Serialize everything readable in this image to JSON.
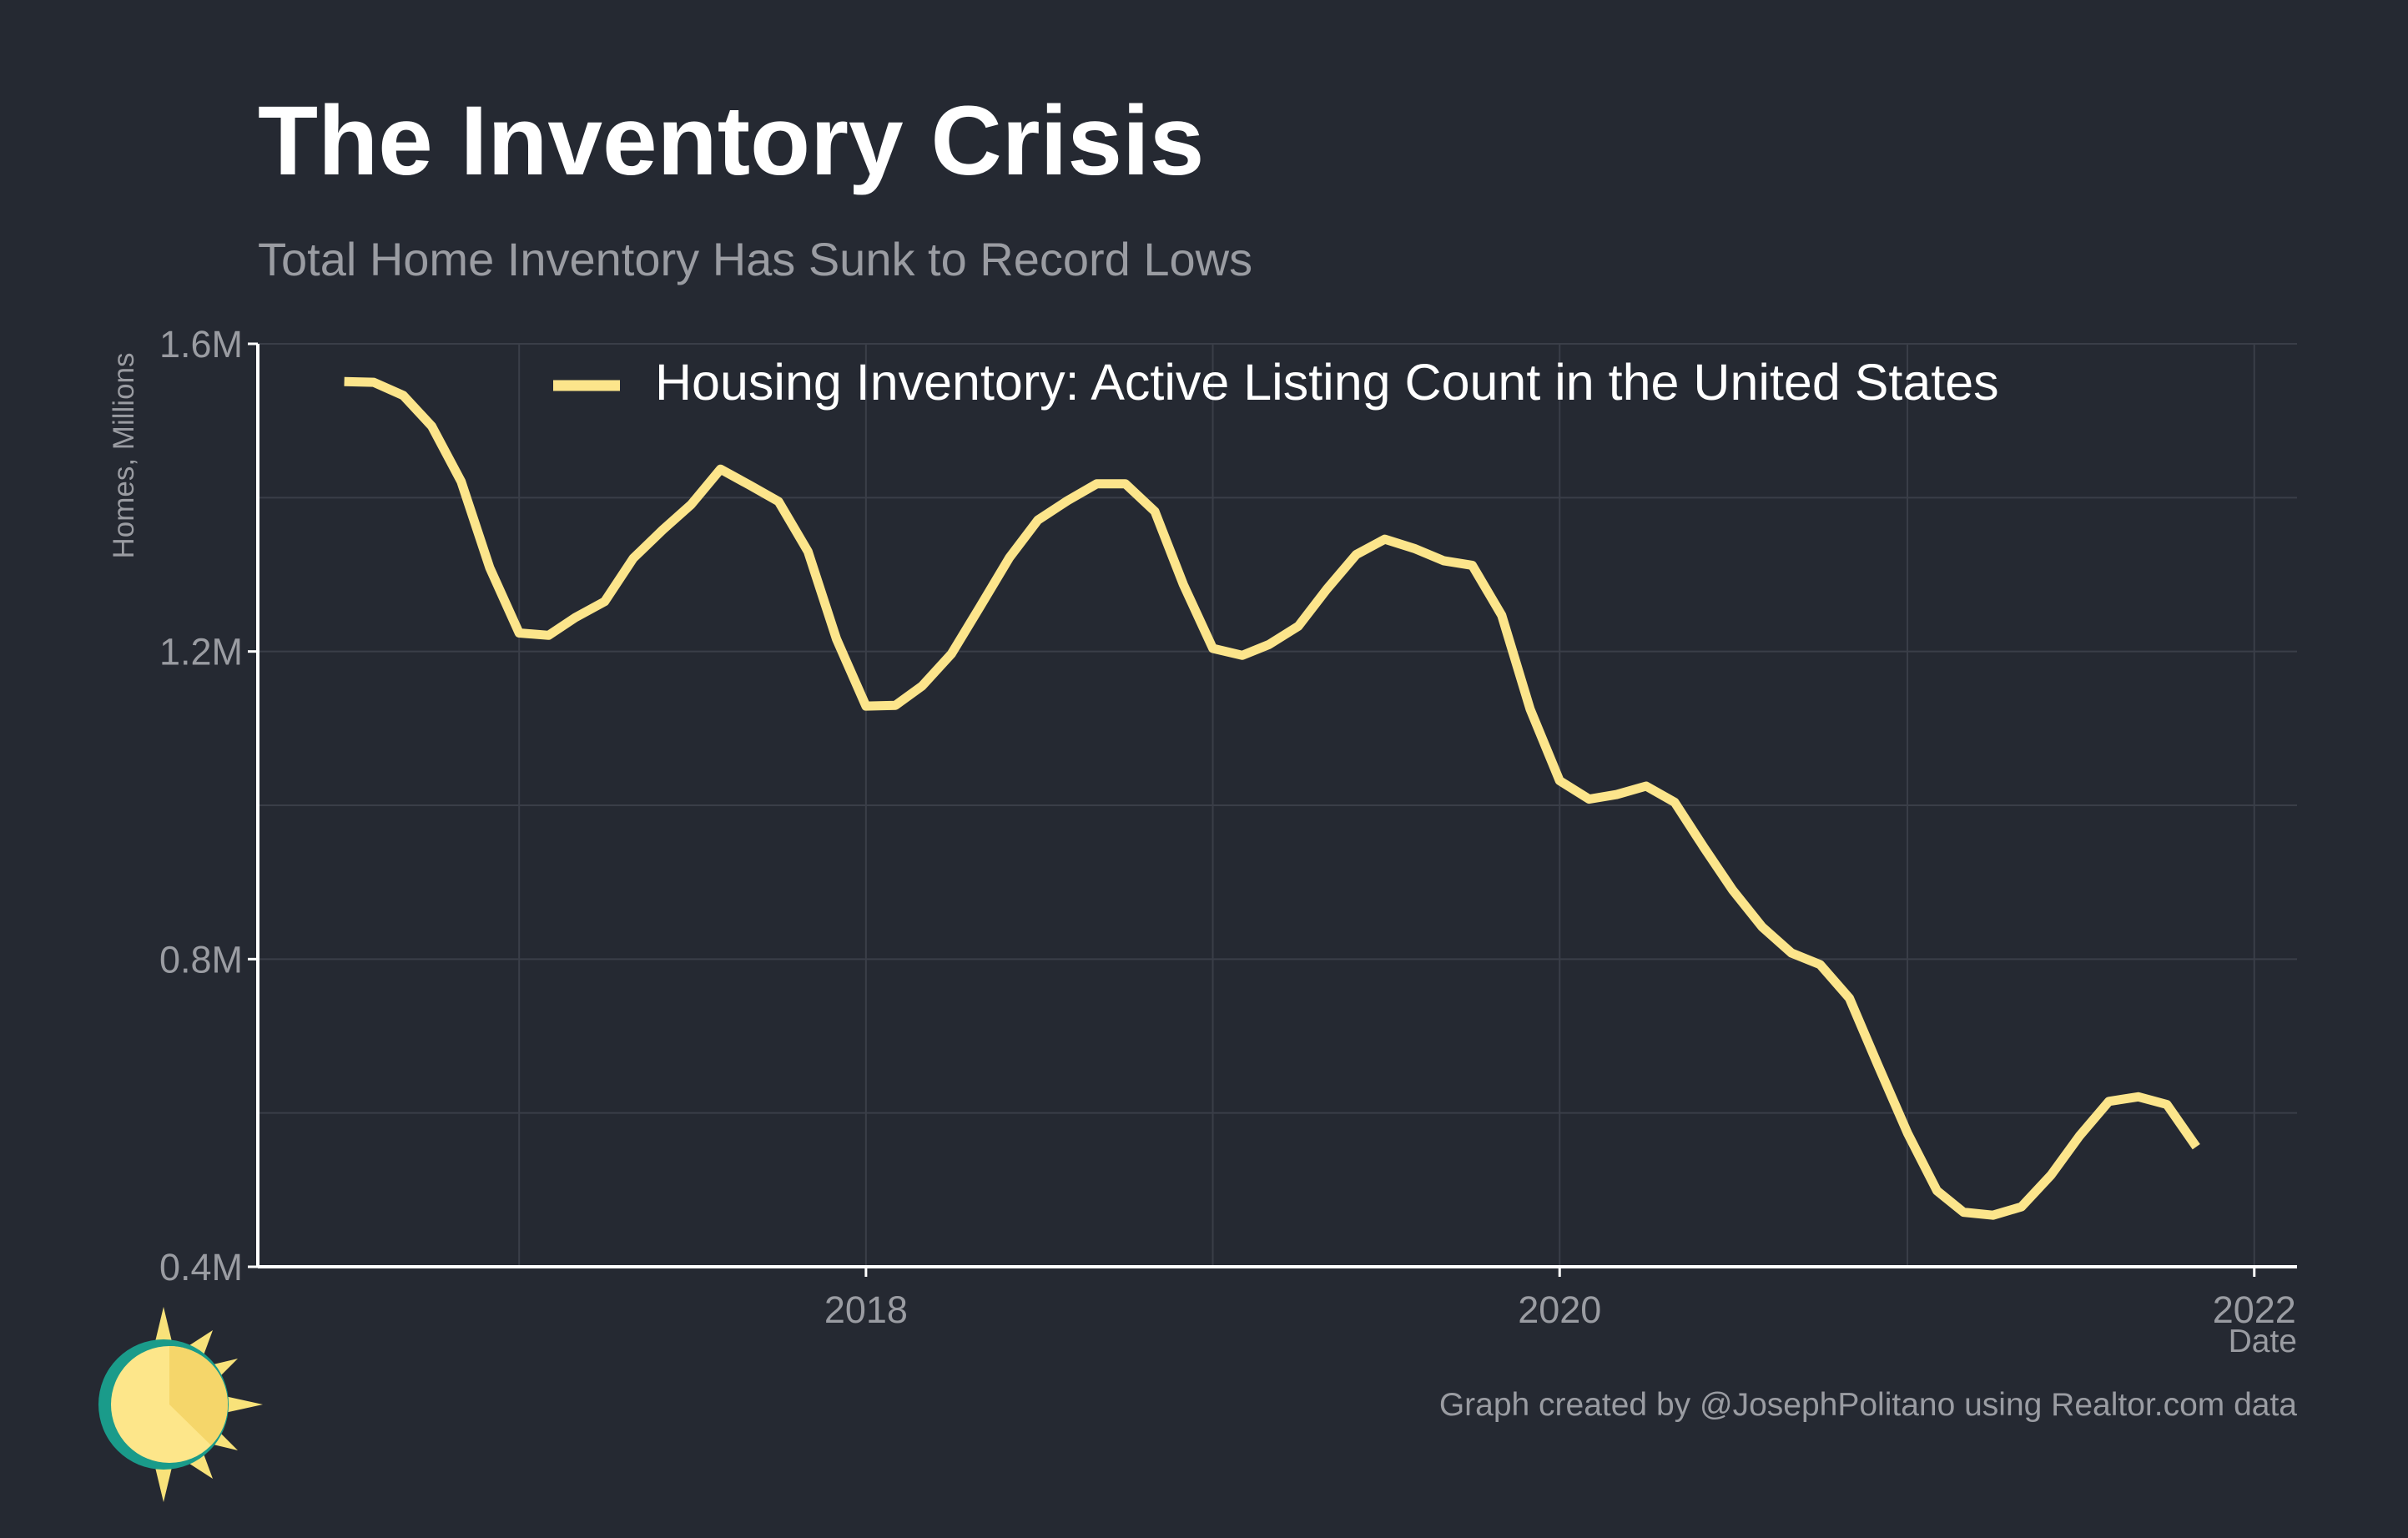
{
  "header": {
    "title": "The Inventory Crisis",
    "subtitle": "Total Home Inventory Has Sunk to Record Lows"
  },
  "footer": {
    "caption": "Graph created by @JosephPolitano using Realtor.com data"
  },
  "logo": {
    "icon": "sun-logo-icon",
    "colors": [
      "#f8e27a",
      "#1a9b8a",
      "#fde68a"
    ]
  },
  "colors": {
    "background": "#252932",
    "line": "#fce58b",
    "grid": "#3a3e48",
    "axis": "#ffffff",
    "muted_text": "#9a9ca2"
  },
  "chart_data": {
    "type": "line",
    "title": "The Inventory Crisis",
    "subtitle": "Total Home Inventory Has Sunk to Record Lows",
    "xlabel": "Date",
    "ylabel": "Homes, Millions",
    "x_ticks": [
      {
        "value": "2018-01-01",
        "label": "2018"
      },
      {
        "value": "2020-01-01",
        "label": "2020"
      },
      {
        "value": "2022-01-01",
        "label": "2022"
      }
    ],
    "y_ticks": [
      {
        "value": 0.4,
        "label": "0.4M"
      },
      {
        "value": 0.8,
        "label": "0.8M"
      },
      {
        "value": 1.2,
        "label": "1.2M"
      },
      {
        "value": 1.6,
        "label": "1.6M"
      }
    ],
    "xlim": [
      "2016-04-01",
      "2022-02-15"
    ],
    "ylim": [
      0.4,
      1.6
    ],
    "grid": true,
    "legend_position": "top",
    "series": [
      {
        "name": "Housing Inventory: Active Listing Count in the United States",
        "color": "#fce58b",
        "x": [
          "2016-07-01",
          "2016-08-01",
          "2016-09-01",
          "2016-10-01",
          "2016-11-01",
          "2016-12-01",
          "2017-01-01",
          "2017-02-01",
          "2017-03-01",
          "2017-04-01",
          "2017-05-01",
          "2017-06-01",
          "2017-07-01",
          "2017-08-01",
          "2017-09-01",
          "2017-10-01",
          "2017-11-01",
          "2017-12-01",
          "2018-01-01",
          "2018-02-01",
          "2018-03-01",
          "2018-04-01",
          "2018-05-01",
          "2018-06-01",
          "2018-07-01",
          "2018-08-01",
          "2018-09-01",
          "2018-10-01",
          "2018-11-01",
          "2018-12-01",
          "2019-01-01",
          "2019-02-01",
          "2019-03-01",
          "2019-04-01",
          "2019-05-01",
          "2019-06-01",
          "2019-07-01",
          "2019-08-01",
          "2019-09-01",
          "2019-10-01",
          "2019-11-01",
          "2019-12-01",
          "2020-01-01",
          "2020-02-01",
          "2020-03-01",
          "2020-04-01",
          "2020-05-01",
          "2020-06-01",
          "2020-07-01",
          "2020-08-01",
          "2020-09-01",
          "2020-10-01",
          "2020-11-01",
          "2020-12-01",
          "2021-01-01",
          "2021-02-01",
          "2021-03-01",
          "2021-04-01",
          "2021-05-01",
          "2021-06-01",
          "2021-07-01",
          "2021-08-01",
          "2021-09-01",
          "2021-10-01",
          "2021-11-01"
        ],
        "values": [
          1.551,
          1.55,
          1.533,
          1.493,
          1.421,
          1.309,
          1.224,
          1.221,
          1.244,
          1.265,
          1.321,
          1.358,
          1.391,
          1.437,
          1.416,
          1.395,
          1.33,
          1.216,
          1.129,
          1.13,
          1.155,
          1.197,
          1.258,
          1.322,
          1.371,
          1.396,
          1.418,
          1.418,
          1.382,
          1.287,
          1.204,
          1.195,
          1.209,
          1.233,
          1.281,
          1.326,
          1.346,
          1.334,
          1.318,
          1.312,
          1.247,
          1.125,
          1.032,
          1.008,
          1.014,
          1.025,
          1.004,
          0.945,
          0.89,
          0.842,
          0.808,
          0.793,
          0.749,
          0.662,
          0.574,
          0.499,
          0.471,
          0.467,
          0.478,
          0.519,
          0.57,
          0.615,
          0.621,
          0.611,
          0.556
        ]
      }
    ]
  }
}
